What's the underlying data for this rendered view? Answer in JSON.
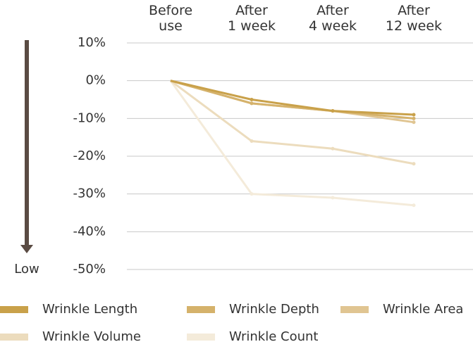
{
  "chart_data": {
    "type": "line",
    "categories": [
      "Before\nuse",
      "After\n1 week",
      "After\n4 week",
      "After\n12 week"
    ],
    "annotation": "Low",
    "ylim": [
      -50,
      10
    ],
    "yticks": [
      {
        "value": 10,
        "label": "10%"
      },
      {
        "value": 0,
        "label": "0%"
      },
      {
        "value": -10,
        "label": "-10%"
      },
      {
        "value": -20,
        "label": "-20%"
      },
      {
        "value": -30,
        "label": "-30%"
      },
      {
        "value": -40,
        "label": "-40%"
      },
      {
        "value": -50,
        "label": "-50%"
      }
    ],
    "grid": true,
    "series": [
      {
        "name": "Wrinkle Length",
        "color": "#c9a14a",
        "values": [
          0,
          -5,
          -8,
          -9
        ]
      },
      {
        "name": "Wrinkle Depth",
        "color": "#d5b26b",
        "values": [
          0,
          -6,
          -8,
          -10
        ]
      },
      {
        "name": "Wrinkle Area",
        "color": "#e0c592",
        "values": [
          0,
          -6,
          -8,
          -11
        ]
      },
      {
        "name": "Wrinkle Volume",
        "color": "#ecdcbd",
        "values": [
          0,
          -16,
          -18,
          -22
        ]
      },
      {
        "name": "Wrinkle Count",
        "color": "#f4ebda",
        "values": [
          0,
          -30,
          -31,
          -33
        ]
      }
    ]
  }
}
